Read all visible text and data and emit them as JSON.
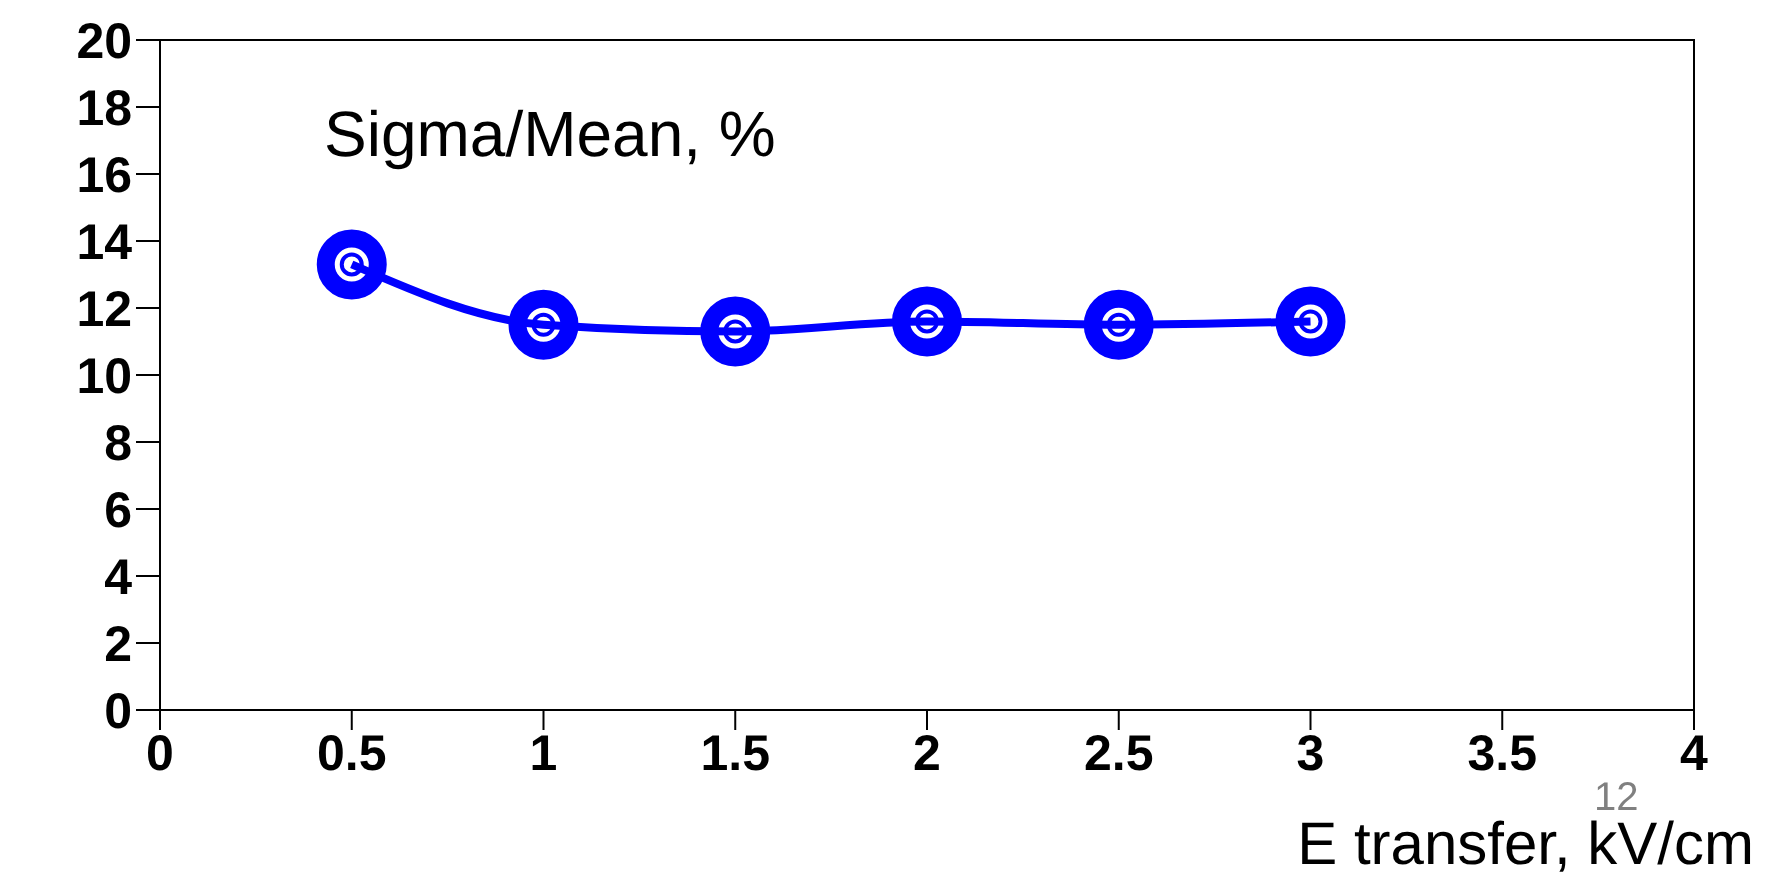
{
  "chart_data": {
    "type": "line",
    "title": "Sigma/Mean, %",
    "xlabel": "E transfer, kV/cm",
    "annotations": [
      "12"
    ],
    "x": [
      0.5,
      1,
      1.5,
      2,
      2.5,
      3
    ],
    "series": [
      {
        "color": "#0000ff",
        "values": [
          13.3,
          11.5,
          11.3,
          11.6,
          11.5,
          11.6
        ]
      }
    ],
    "xlim": [
      0,
      4
    ],
    "xticks": [
      0,
      0.5,
      1,
      1.5,
      2,
      2.5,
      3,
      3.5,
      4
    ],
    "ylim": [
      0,
      20
    ],
    "yticks": [
      0,
      2,
      4,
      6,
      8,
      10,
      12,
      14,
      16,
      18,
      20
    ],
    "marker": "circle",
    "line_style": "solid",
    "grid": false,
    "legend": false
  }
}
